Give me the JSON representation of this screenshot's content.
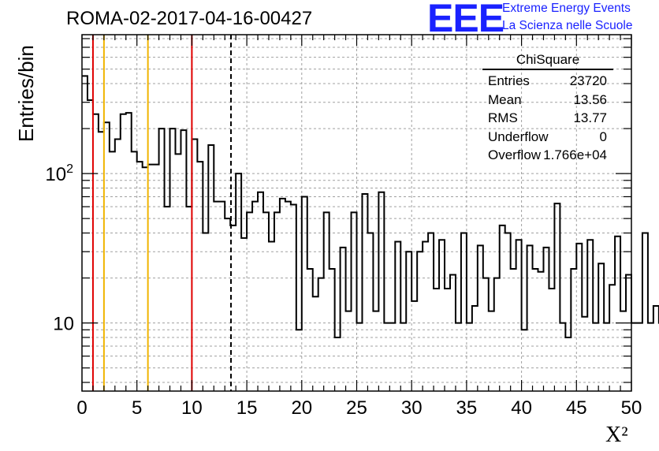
{
  "header": {
    "title": "ROMA-02-2017-04-16-00427",
    "logo_text": "EEE",
    "logo_line1": "Extreme Energy Events",
    "logo_line2": "La Scienza nelle Scuole",
    "logo_color": "#1a22ff"
  },
  "stats": {
    "name": "ChiSquare",
    "rows": [
      {
        "label": "Entries",
        "value": "23720"
      },
      {
        "label": "Mean",
        "value": "13.56"
      },
      {
        "label": "RMS",
        "value": "13.77"
      },
      {
        "label": "Underflow",
        "value": "0"
      },
      {
        "label": "Overflow",
        "value": "1.766e+04"
      }
    ]
  },
  "chart_data": {
    "type": "histogram",
    "title": "ROMA-02-2017-04-16-00427",
    "xlabel": "X²",
    "ylabel": "Entries/bin",
    "xlim": [
      0,
      50
    ],
    "ylim": [
      3.5,
      850
    ],
    "yscale": "log",
    "grid": true,
    "bin_width": 0.5,
    "bin_start": 0,
    "xticks": [
      "0",
      "5",
      "10",
      "15",
      "20",
      "25",
      "30",
      "35",
      "40",
      "45",
      "50"
    ],
    "yticks": [
      {
        "value": 10,
        "label": "10"
      },
      {
        "value": 100,
        "label": "10²"
      }
    ],
    "values": [
      450,
      310,
      250,
      190,
      220,
      140,
      170,
      250,
      255,
      140,
      120,
      110,
      115,
      115,
      200,
      60,
      200,
      135,
      195,
      60,
      170,
      120,
      40,
      155,
      65,
      65,
      50,
      45,
      100,
      37,
      55,
      65,
      75,
      55,
      35,
      55,
      68,
      65,
      62,
      9,
      70,
      23,
      15,
      20,
      55,
      23,
      8,
      32,
      12,
      55,
      10,
      73,
      40,
      12,
      75,
      10,
      10,
      35,
      10,
      30,
      14,
      30,
      35,
      40,
      17,
      36,
      17,
      21,
      10,
      40,
      10,
      13,
      33,
      20,
      12,
      20,
      45,
      40,
      23,
      36,
      9,
      33,
      23,
      22,
      32,
      17,
      63,
      10,
      8,
      23,
      34,
      11,
      36,
      10,
      25,
      10,
      18,
      38,
      12,
      21,
      10,
      10,
      40,
      10,
      13,
      10,
      38,
      10,
      34,
      7,
      20,
      30,
      18,
      22,
      9,
      20,
      40,
      11,
      18,
      14,
      27,
      21,
      22,
      28,
      13,
      16,
      9,
      11,
      17,
      22,
      11,
      15,
      9,
      27,
      28,
      14,
      20,
      29,
      18,
      35,
      14,
      16,
      13,
      15,
      12,
      10,
      10,
      20,
      14,
      11
    ],
    "vlines": [
      {
        "x": 1,
        "color": "#e00000",
        "style": "solid"
      },
      {
        "x": 2,
        "color": "#f0b400",
        "style": "solid"
      },
      {
        "x": 6,
        "color": "#f0b400",
        "style": "solid"
      },
      {
        "x": 10,
        "color": "#e00000",
        "style": "solid"
      },
      {
        "x": 13.56,
        "color": "#000000",
        "style": "dashed"
      }
    ]
  }
}
